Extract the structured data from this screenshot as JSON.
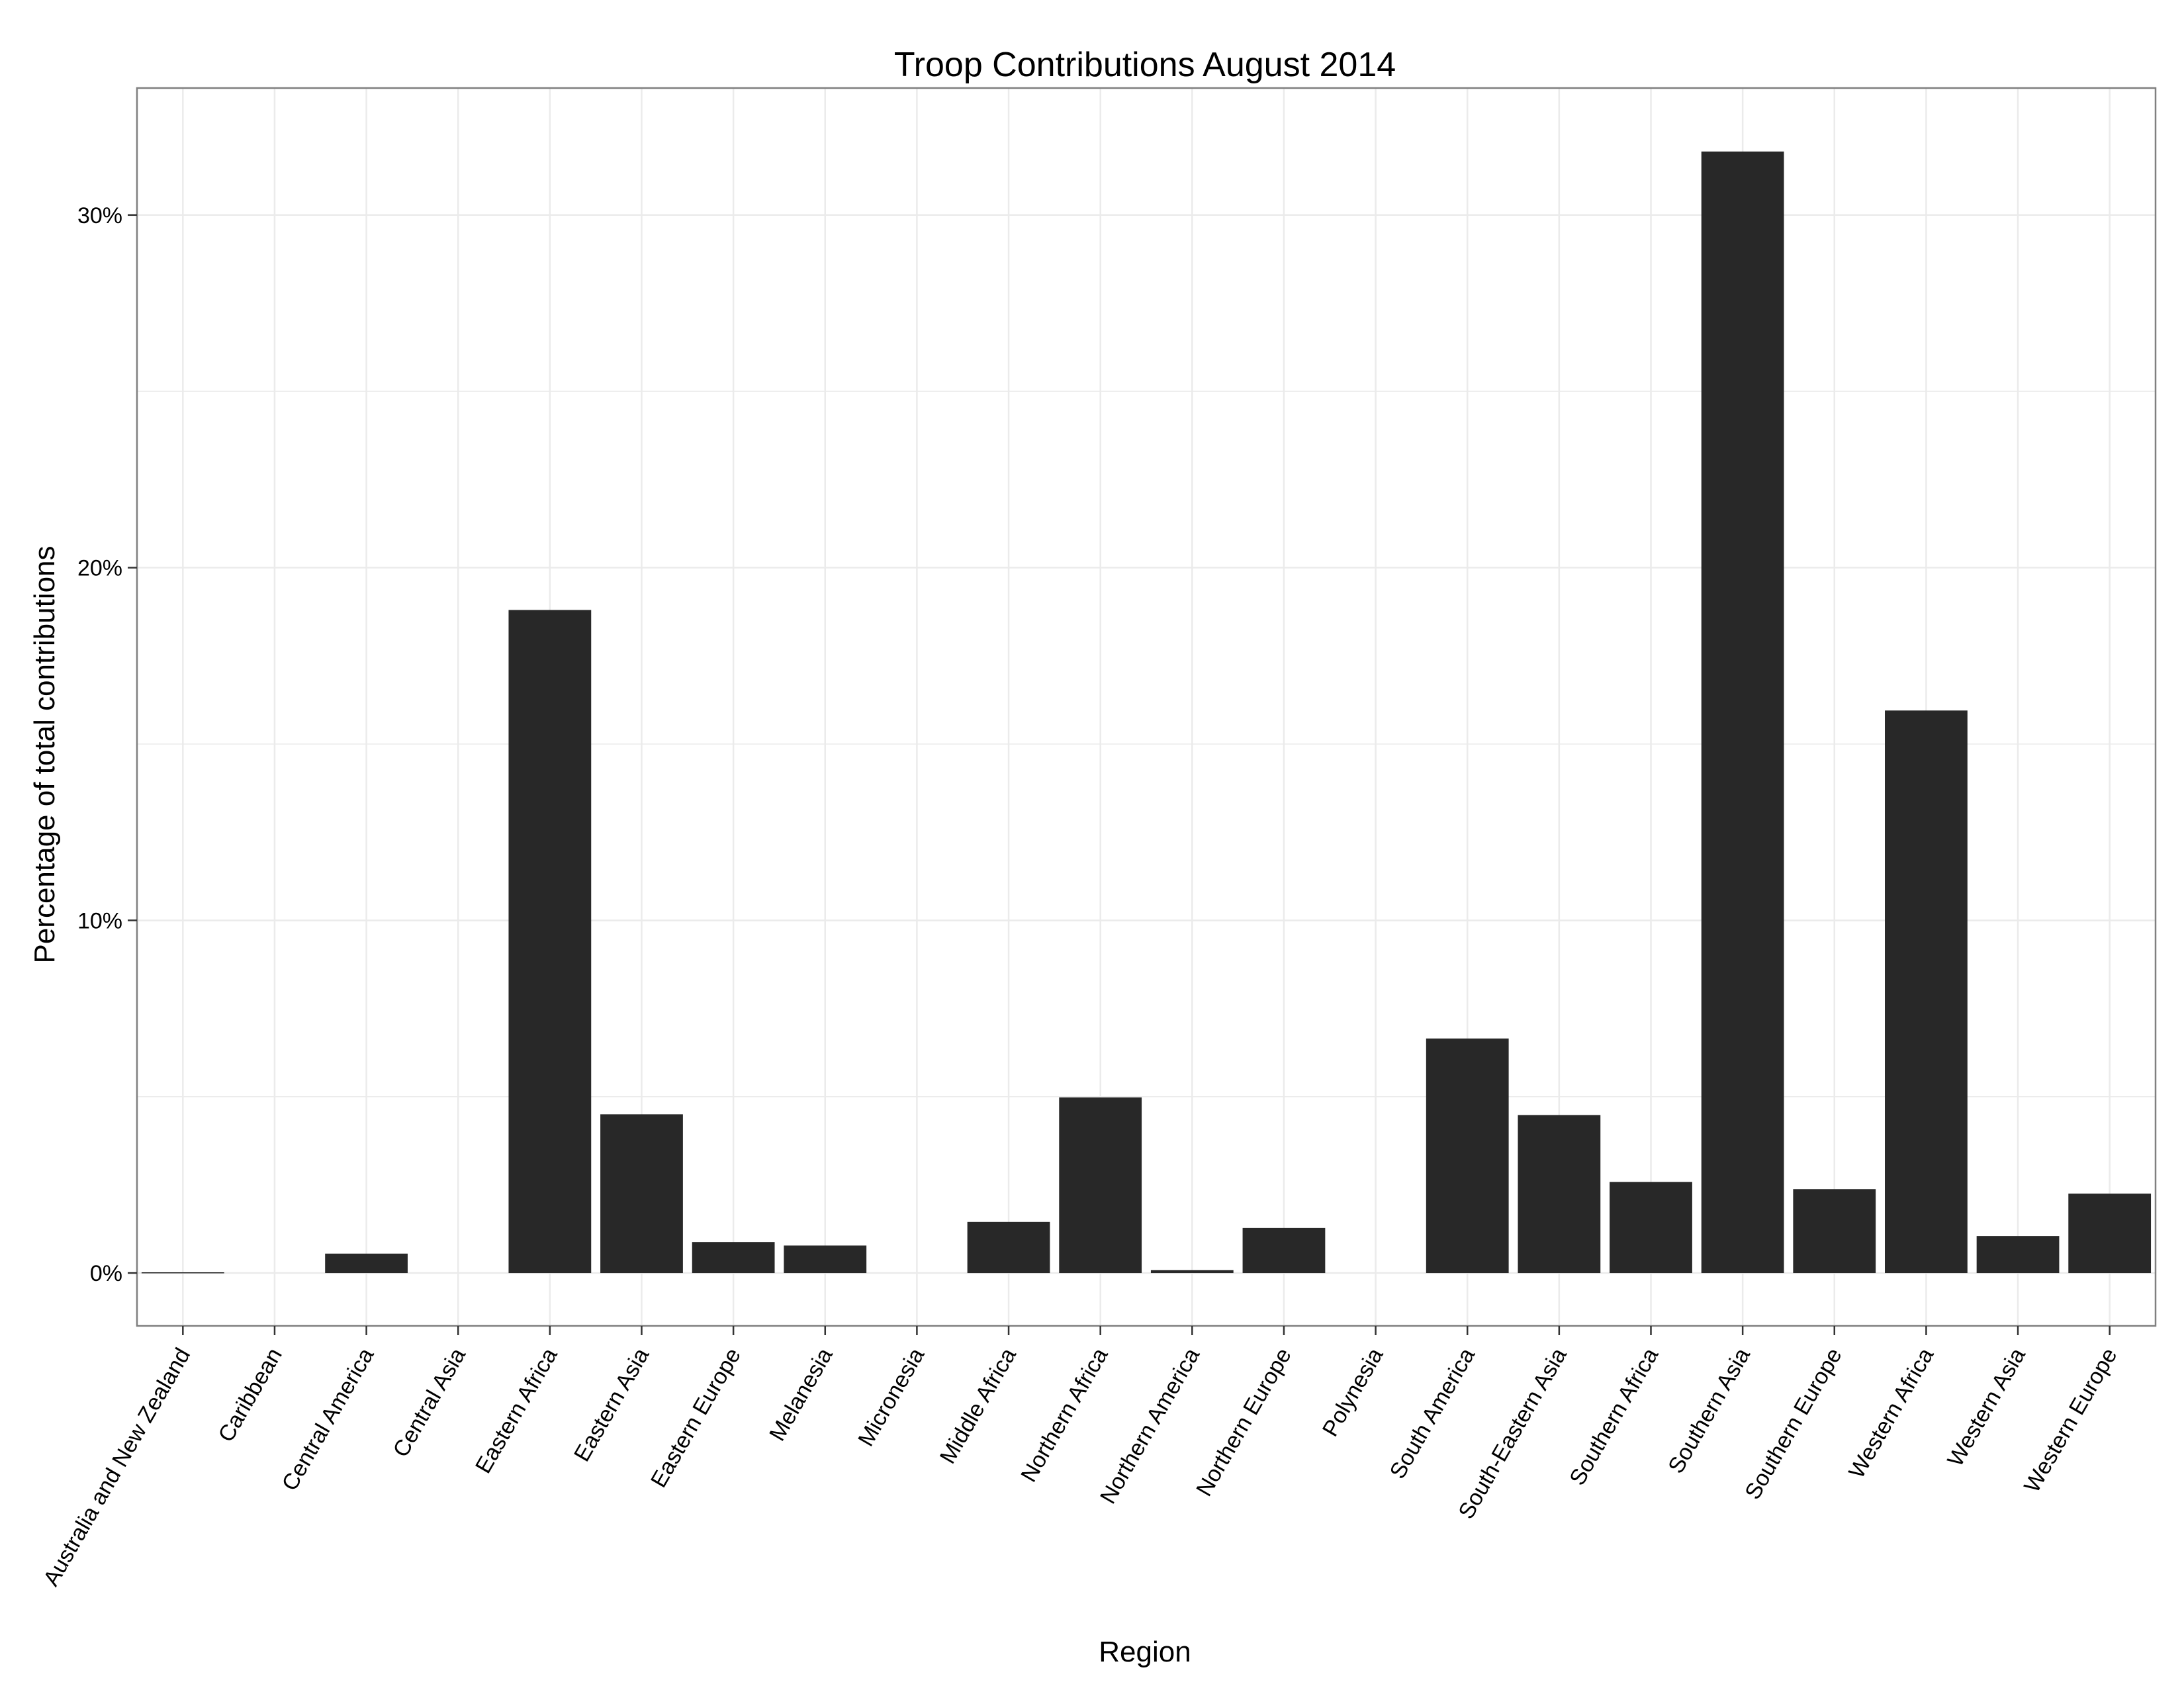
{
  "chart_data": {
    "type": "bar",
    "title": "Troop Contributions August 2014",
    "xlabel": "Region",
    "ylabel": "Percentage of total contributions",
    "categories": [
      "Australia and New Zealand",
      "Caribbean",
      "Central America",
      "Central Asia",
      "Eastern Africa",
      "Eastern Asia",
      "Eastern Europe",
      "Melanesia",
      "Micronesia",
      "Middle Africa",
      "Northern Africa",
      "Northern America",
      "Northern Europe",
      "Polynesia",
      "South America",
      "South-Eastern Asia",
      "Southern Africa",
      "Southern Asia",
      "Southern Europe",
      "Western Africa",
      "Western Asia",
      "Western Europe"
    ],
    "values": [
      0.02,
      0.0,
      0.55,
      0.0,
      18.8,
      4.5,
      0.88,
      0.78,
      0.0,
      1.45,
      4.98,
      0.08,
      1.28,
      0.0,
      6.65,
      4.48,
      2.58,
      31.8,
      2.38,
      15.95,
      1.05,
      2.25
    ],
    "y_ticks": [
      0,
      10,
      20,
      30
    ],
    "y_tick_labels": [
      "0%",
      "10%",
      "20%",
      "30%"
    ],
    "ylim": [
      -1.5,
      33.6
    ],
    "grid": true,
    "bar_color": "#282828",
    "grid_color": "#ebebeb",
    "panel_border_color": "#7f7f7f"
  }
}
